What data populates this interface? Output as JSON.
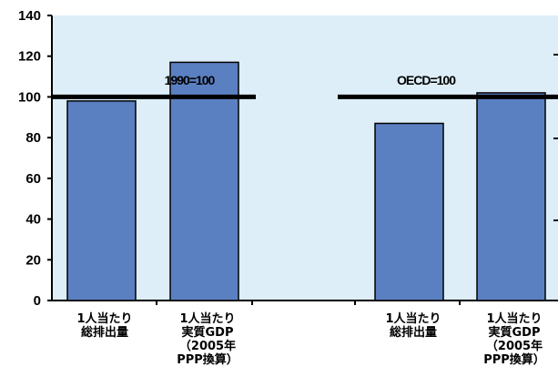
{
  "chart_data": {
    "type": "bar",
    "ylim": [
      0,
      140
    ],
    "yticks": [
      "0",
      "20",
      "40",
      "60",
      "80",
      "100",
      "120",
      "140"
    ],
    "grid": false,
    "groups": [
      {
        "reference_label": "1990=100",
        "reference_value": 100,
        "bars": [
          {
            "label_lines": [
              "1人当たり",
              "総排出量"
            ],
            "value": 98
          },
          {
            "label_lines": [
              "1人当たり",
              "実質GDP",
              "（2005年",
              "PPP換算）"
            ],
            "value": 117
          }
        ]
      },
      {
        "reference_label": "OECD=100",
        "reference_value": 100,
        "bars": [
          {
            "label_lines": [
              "1人当たり",
              "総排出量"
            ],
            "value": 87
          },
          {
            "label_lines": [
              "1人当たり",
              "実質GDP",
              "（2005年",
              "PPP換算）"
            ],
            "value": 102
          }
        ]
      }
    ],
    "colors": {
      "bar_fill": "#5b80c2",
      "bar_stroke": "#000000",
      "plot_bg": "#ddeef9",
      "reference_line": "#000000"
    }
  }
}
